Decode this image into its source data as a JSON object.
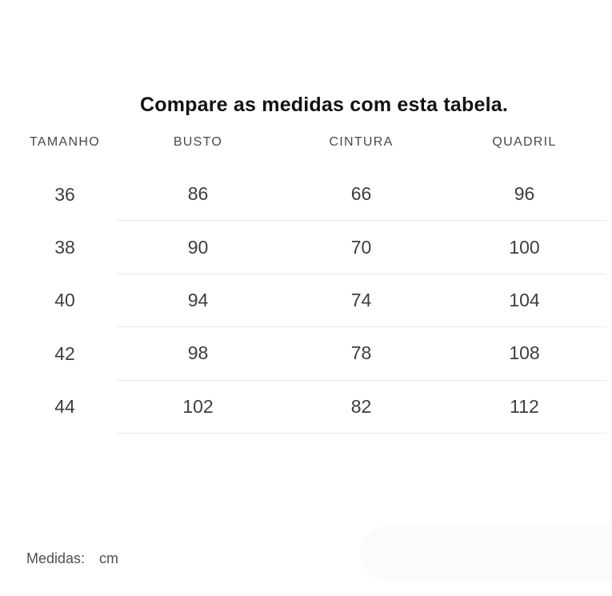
{
  "title": "Compare as medidas com esta tabela.",
  "table": {
    "columns": [
      "TAMANHO",
      "BUSTO",
      "CINTURA",
      "QUADRIL"
    ],
    "rows": [
      [
        "36",
        "86",
        "66",
        "96"
      ],
      [
        "38",
        "90",
        "70",
        "100"
      ],
      [
        "40",
        "94",
        "74",
        "104"
      ],
      [
        "42",
        "98",
        "78",
        "108"
      ],
      [
        "44",
        "102",
        "82",
        "112"
      ]
    ]
  },
  "footer": {
    "label": "Medidas:",
    "unit": "cm"
  },
  "colors": {
    "page_background": "#ffffff",
    "title_text": "#121212",
    "header_text": "#48484d",
    "cell_text": "#3e3e41",
    "divider": "#eaeaea",
    "footer_text": "#4f4f4f",
    "pill_background": "#fbfbfb"
  }
}
